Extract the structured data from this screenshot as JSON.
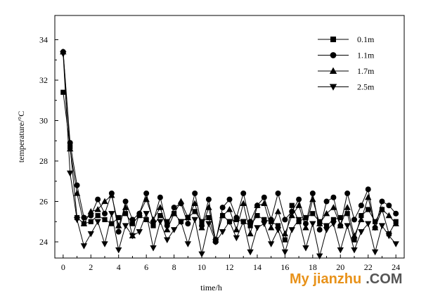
{
  "chart_data": {
    "type": "line",
    "title": "",
    "xlabel": "time/h",
    "ylabel": "temperature/°C",
    "xlim": [
      -0.6,
      24.6
    ],
    "ylim": [
      23.2,
      35.2
    ],
    "xticks": [
      0,
      2,
      4,
      6,
      8,
      10,
      12,
      14,
      16,
      18,
      20,
      22,
      24
    ],
    "yticks": [
      24,
      26,
      28,
      30,
      32,
      34
    ],
    "grid": false,
    "legend_position": "top-right",
    "x": [
      0,
      0.5,
      1,
      1.5,
      2,
      2.5,
      3,
      3.5,
      4,
      4.5,
      5,
      5.5,
      6,
      6.5,
      7,
      7.5,
      8,
      8.5,
      9,
      9.5,
      10,
      10.5,
      11,
      11.5,
      12,
      12.5,
      13,
      13.5,
      14,
      14.5,
      15,
      15.5,
      16,
      16.5,
      17,
      17.5,
      18,
      18.5,
      19,
      19.5,
      20,
      20.5,
      21,
      21.5,
      22,
      22.5,
      23,
      23.5,
      24
    ],
    "series": [
      {
        "name": "0.1m",
        "marker": "square",
        "values": [
          31.4,
          28.7,
          25.2,
          24.9,
          25.0,
          25.3,
          25.1,
          24.9,
          25.2,
          25.4,
          24.9,
          25.3,
          25.1,
          24.8,
          25.3,
          25.0,
          25.4,
          25.0,
          25.2,
          25.5,
          25.0,
          25.2,
          24.1,
          25.3,
          25.0,
          25.1,
          25.0,
          24.8,
          25.3,
          25.1,
          25.0,
          24.8,
          24.1,
          25.8,
          25.0,
          25.2,
          25.4,
          25.0,
          24.8,
          25.1,
          25.2,
          25.4,
          24.1,
          25.3,
          25.6,
          25.0,
          25.6,
          24.4,
          25.0
        ]
      },
      {
        "name": "1.1m",
        "marker": "circle",
        "values": [
          33.4,
          28.9,
          26.8,
          25.2,
          25.3,
          26.1,
          25.4,
          26.4,
          24.5,
          26.0,
          25.1,
          25.4,
          26.4,
          25.0,
          26.2,
          24.8,
          25.7,
          25.9,
          24.9,
          26.4,
          24.8,
          26.1,
          24.0,
          25.7,
          26.1,
          25.2,
          26.4,
          25.0,
          25.8,
          26.2,
          25.1,
          26.4,
          25.1,
          25.5,
          26.1,
          24.9,
          26.4,
          24.6,
          26.0,
          26.2,
          24.8,
          26.4,
          25.1,
          25.8,
          26.6,
          24.7,
          26.0,
          25.8,
          25.4
        ]
      },
      {
        "name": "1.7m",
        "marker": "triangle-up",
        "values": [
          33.4,
          28.6,
          26.4,
          24.9,
          25.5,
          25.6,
          26.0,
          26.3,
          24.8,
          25.7,
          24.3,
          25.4,
          26.1,
          25.1,
          25.7,
          24.6,
          25.4,
          26.0,
          25.2,
          25.9,
          24.7,
          25.7,
          24.1,
          25.3,
          25.6,
          24.6,
          25.9,
          24.4,
          25.8,
          25.9,
          24.7,
          25.5,
          24.4,
          25.3,
          25.8,
          24.7,
          26.1,
          24.9,
          25.4,
          25.7,
          24.8,
          25.7,
          24.3,
          25.1,
          26.2,
          24.7,
          25.6,
          25.3,
          24.9
        ]
      },
      {
        "name": "2.5m",
        "marker": "triangle-down",
        "values": [
          33.3,
          27.4,
          25.1,
          23.8,
          24.4,
          25.0,
          23.9,
          25.4,
          23.6,
          24.8,
          24.3,
          24.5,
          25.4,
          23.7,
          25.0,
          24.1,
          24.6,
          25.0,
          23.9,
          25.1,
          23.4,
          24.9,
          24.0,
          24.5,
          25.0,
          24.2,
          25.0,
          23.5,
          24.7,
          24.9,
          23.9,
          24.6,
          23.5,
          24.6,
          25.1,
          23.7,
          24.9,
          23.3,
          24.6,
          24.9,
          23.6,
          24.8,
          23.6,
          24.5,
          24.9,
          23.5,
          24.8,
          24.3,
          23.9
        ]
      }
    ]
  },
  "watermark": {
    "brand": "My jianzhu",
    "tld": ".COM",
    "brand_color": "#e8921a",
    "tld_color": "#555555"
  }
}
